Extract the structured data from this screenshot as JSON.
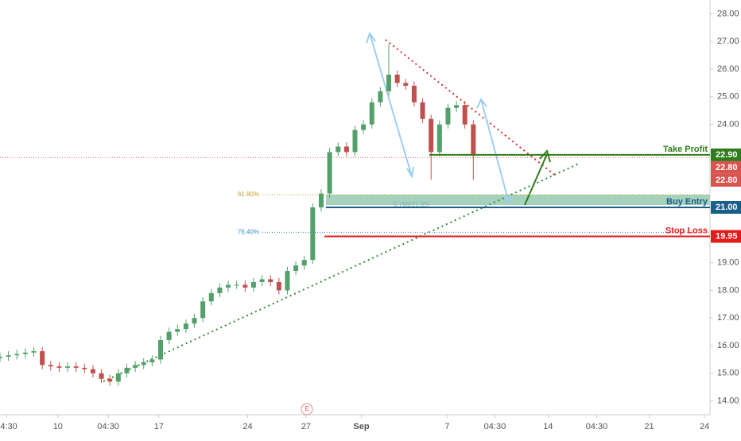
{
  "chart_data": {
    "type": "candlestick",
    "x": [
      0,
      2,
      4,
      6,
      8,
      10,
      12,
      14,
      16,
      18,
      20,
      22,
      24,
      26,
      28,
      30,
      32,
      34,
      36,
      38,
      40,
      42,
      44,
      46,
      48,
      50,
      52,
      54,
      56,
      58,
      60,
      62,
      64,
      66,
      68,
      70,
      72,
      74,
      76,
      78,
      80,
      82,
      84,
      86,
      88,
      90,
      92,
      94,
      96,
      98,
      100,
      102,
      104,
      106,
      108,
      110,
      112
    ],
    "open": [
      15.55,
      15.6,
      15.65,
      15.7,
      15.75,
      15.8,
      15.3,
      15.25,
      15.2,
      15.25,
      15.2,
      15.15,
      15.0,
      14.8,
      14.7,
      15.0,
      15.2,
      15.3,
      15.4,
      15.5,
      16.2,
      16.5,
      16.6,
      16.8,
      17.0,
      17.6,
      17.9,
      18.1,
      18.2,
      18.2,
      18.1,
      18.3,
      18.4,
      18.3,
      18.0,
      18.7,
      18.9,
      19.1,
      21.0,
      21.5,
      23.0,
      23.2,
      23.0,
      23.8,
      24.0,
      24.8,
      25.2,
      25.8,
      25.5,
      25.4,
      24.8,
      24.2,
      23.0,
      24.0,
      24.6,
      24.7,
      24.0
    ],
    "high": [
      15.75,
      15.8,
      15.85,
      15.9,
      15.95,
      15.95,
      15.45,
      15.4,
      15.4,
      15.4,
      15.35,
      15.3,
      15.15,
      14.95,
      15.15,
      15.35,
      15.45,
      15.55,
      15.65,
      16.35,
      16.65,
      16.75,
      16.95,
      17.15,
      17.75,
      18.05,
      18.25,
      18.35,
      18.35,
      18.35,
      18.45,
      18.55,
      18.55,
      18.45,
      18.85,
      19.05,
      19.25,
      21.15,
      21.65,
      23.15,
      23.35,
      23.35,
      23.95,
      24.15,
      24.95,
      25.35,
      26.9,
      25.95,
      25.65,
      25.55,
      24.95,
      24.35,
      24.15,
      24.75,
      24.85,
      24.85,
      24.15
    ],
    "low": [
      15.4,
      15.45,
      15.5,
      15.55,
      15.6,
      15.15,
      15.1,
      15.05,
      15.05,
      15.05,
      15.0,
      14.85,
      14.65,
      14.55,
      14.55,
      14.85,
      15.05,
      15.15,
      15.25,
      15.35,
      16.05,
      16.35,
      16.45,
      16.65,
      16.85,
      17.45,
      17.75,
      17.95,
      18.05,
      17.95,
      17.95,
      18.15,
      18.15,
      17.85,
      17.85,
      18.55,
      18.75,
      18.95,
      20.85,
      21.35,
      22.85,
      22.85,
      22.85,
      23.65,
      23.85,
      24.65,
      25.05,
      25.35,
      25.25,
      24.65,
      24.05,
      22.0,
      22.85,
      23.85,
      24.45,
      23.85,
      22.0
    ],
    "close": [
      15.6,
      15.65,
      15.7,
      15.75,
      15.8,
      15.3,
      15.25,
      15.2,
      15.25,
      15.2,
      15.15,
      15.0,
      14.8,
      14.7,
      15.0,
      15.2,
      15.3,
      15.4,
      15.5,
      16.2,
      16.5,
      16.6,
      16.8,
      17.0,
      17.6,
      17.9,
      18.1,
      18.2,
      18.2,
      18.1,
      18.3,
      18.4,
      18.3,
      18.0,
      18.7,
      18.9,
      19.1,
      21.0,
      21.5,
      23.0,
      23.2,
      23.0,
      23.8,
      24.0,
      24.8,
      25.2,
      25.8,
      25.5,
      25.4,
      24.8,
      24.2,
      23.0,
      24.0,
      24.6,
      24.7,
      24.0,
      22.9
    ],
    "up_color": "#53a06b",
    "down_color": "#c0504d",
    "xlim": [
      0,
      168
    ],
    "xticks": [
      {
        "value": 1.5,
        "label": "04:30"
      },
      {
        "value": 13.7,
        "label": "10"
      },
      {
        "value": 25.6,
        "label": "04:30"
      },
      {
        "value": 37.6,
        "label": "17"
      },
      {
        "value": 58.6,
        "label": "24"
      },
      {
        "value": 72.4,
        "label": "27"
      },
      {
        "value": 85.5,
        "label": "Sep"
      },
      {
        "value": 105.8,
        "label": "7"
      },
      {
        "value": 117.1,
        "label": "04:30"
      },
      {
        "value": 129.7,
        "label": "14"
      },
      {
        "value": 141.2,
        "label": "04:30"
      },
      {
        "value": 153.6,
        "label": "21"
      },
      {
        "value": 166.7,
        "label": "24"
      }
    ],
    "ylim": [
      13.5,
      28.5
    ],
    "yticks": [
      {
        "value": 14,
        "label": "14.00"
      },
      {
        "value": 15,
        "label": "15.00"
      },
      {
        "value": 16,
        "label": "16.00"
      },
      {
        "value": 17,
        "label": "17.00"
      },
      {
        "value": 18,
        "label": "18.00"
      },
      {
        "value": 19,
        "label": "19.00"
      },
      {
        "value": 20,
        "label": "20.00"
      },
      {
        "value": 21,
        "label": "21.00"
      },
      {
        "value": 22,
        "label": "22.00"
      },
      {
        "value": 23,
        "label": "23.00"
      },
      {
        "value": 24,
        "label": "24.00"
      },
      {
        "value": 25,
        "label": "25.00"
      },
      {
        "value": 26,
        "label": "26.00"
      },
      {
        "value": 27,
        "label": "27.00"
      },
      {
        "value": 28,
        "label": "28.00"
      }
    ],
    "levels": [
      {
        "name": "Take Profit",
        "value": 22.9,
        "value_label": "22.90",
        "color": "#2e7d1a"
      },
      {
        "name": "Buy Entry",
        "value": 21.0,
        "value_label": "21.00",
        "color": "#1a5e8a"
      },
      {
        "name": "Stop Loss",
        "value": 19.95,
        "value_label": "19.95",
        "color": "#e31b1b"
      }
    ],
    "price_marks": [
      {
        "value": 22.8,
        "value_label": "22.80",
        "color": "#d9534f"
      },
      {
        "value": 22.8,
        "value_label": "22.80",
        "color": "#d9534f"
      }
    ],
    "fib_levels": [
      {
        "label": "61.80%",
        "value": 21.46,
        "color": "#c9a227"
      },
      {
        "label": "76.40%",
        "value": 20.1,
        "color": "#3a8fc9"
      }
    ],
    "fib_note": "0.786(21.05)",
    "event_marker": "E"
  }
}
